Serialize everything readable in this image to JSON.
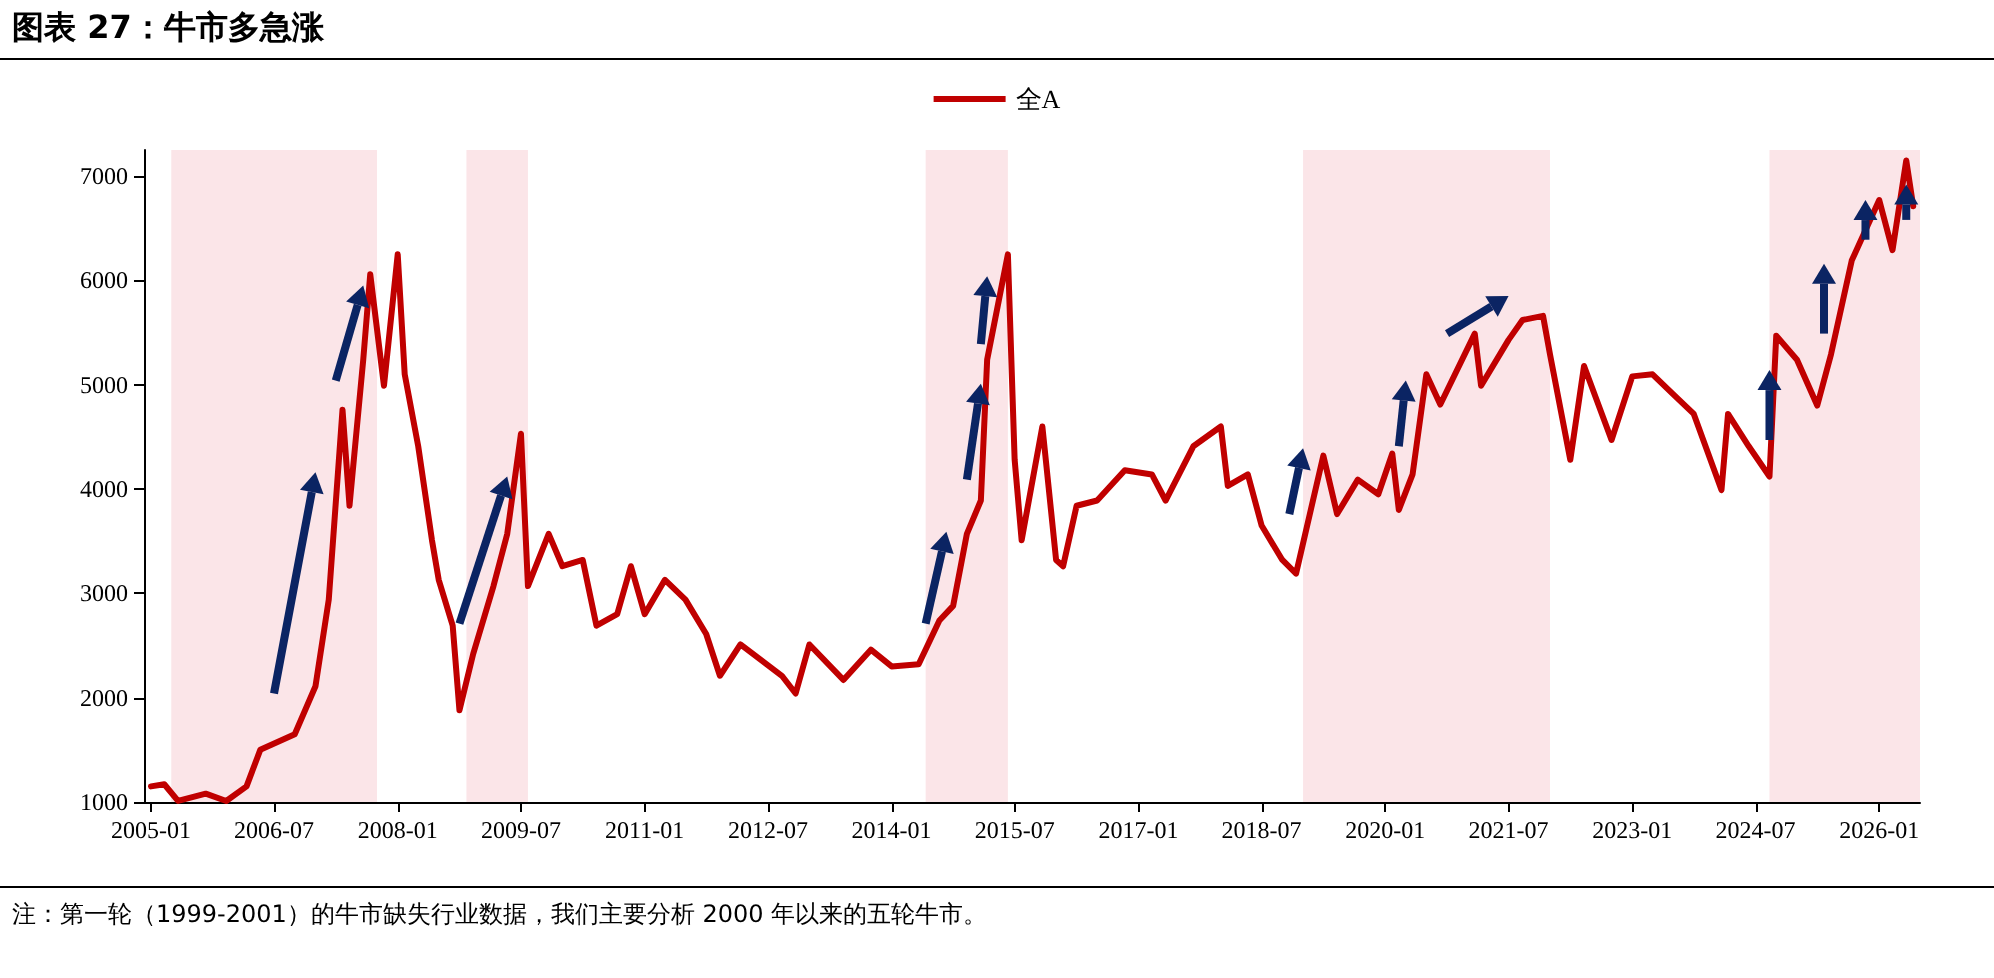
{
  "chart_data": {
    "type": "line",
    "title": "图表 27：牛市多急涨",
    "annotations": [
      "注：第一轮（1999-2001）的牛市缺失行业数据，我们主要分析 2000 年以来的五轮牛市。"
    ],
    "x": [
      "2005-01",
      "2005-03",
      "2005-05",
      "2005-09",
      "2005-12",
      "2006-03",
      "2006-05",
      "2006-10",
      "2007-01",
      "2007-03",
      "2007-05",
      "2007-06",
      "2007-08",
      "2007-09",
      "2007-11",
      "2008-01",
      "2008-02",
      "2008-04",
      "2008-06",
      "2008-07",
      "2008-09",
      "2008-10",
      "2008-12",
      "2009-03",
      "2009-05",
      "2009-07",
      "2009-08",
      "2009-11",
      "2010-01",
      "2010-04",
      "2010-06",
      "2010-09",
      "2010-11",
      "2011-01",
      "2011-04",
      "2011-07",
      "2011-10",
      "2011-12",
      "2012-03",
      "2012-09",
      "2012-11",
      "2013-01",
      "2013-06",
      "2013-10",
      "2014-01",
      "2014-05",
      "2014-08",
      "2014-10",
      "2014-12",
      "2015-02",
      "2015-03",
      "2015-06",
      "2015-07",
      "2015-08",
      "2015-11",
      "2016-01",
      "2016-02",
      "2016-04",
      "2016-07",
      "2016-11",
      "2017-03",
      "2017-05",
      "2017-09",
      "2018-01",
      "2018-02",
      "2018-05",
      "2018-07",
      "2018-10",
      "2018-12",
      "2019-04",
      "2019-06",
      "2019-09",
      "2019-12",
      "2020-02",
      "2020-03",
      "2020-05",
      "2020-07",
      "2020-09",
      "2021-02",
      "2021-03",
      "2021-07",
      "2021-09",
      "2021-12",
      "2022-01",
      "2022-04",
      "2022-06",
      "2022-10",
      "2023-01",
      "2023-04",
      "2023-07",
      "2023-10",
      "2024-02",
      "2024-03",
      "2024-06",
      "2024-09",
      "2024-10",
      "2025-01",
      "2025-04",
      "2025-06",
      "2025-09",
      "2026-01",
      "2026-03",
      "2026-05",
      "2026-06"
    ],
    "series": [
      {
        "name": "全A",
        "color": "#c00000",
        "values": [
          1150,
          1170,
          1010,
          1080,
          1010,
          1150,
          1500,
          1650,
          2110,
          2940,
          4760,
          3840,
          5240,
          6060,
          4990,
          6250,
          5100,
          4410,
          3510,
          3130,
          2690,
          1880,
          2420,
          3070,
          3570,
          4530,
          3070,
          3570,
          3260,
          3320,
          2690,
          2800,
          3260,
          2800,
          3130,
          2940,
          2610,
          2210,
          2510,
          2210,
          2040,
          2510,
          2170,
          2460,
          2300,
          2320,
          2740,
          2880,
          3570,
          3890,
          5240,
          6250,
          4280,
          3510,
          4600,
          3320,
          3260,
          3840,
          3890,
          4180,
          4140,
          3890,
          4410,
          4600,
          4030,
          4140,
          3650,
          3320,
          3190,
          4320,
          3760,
          4090,
          3950,
          4340,
          3800,
          4140,
          5100,
          4810,
          5490,
          4990,
          5430,
          5620,
          5660,
          5290,
          4280,
          5180,
          4470,
          5080,
          5100,
          4910,
          4720,
          3990,
          4720,
          4410,
          4120,
          5470,
          5240,
          4800,
          5290,
          6190,
          6770,
          6290,
          7150,
          6710
        ]
      }
    ],
    "xlim": [
      "2004-12",
      "2026-07"
    ],
    "xticks": [
      "2005-01",
      "2006-07",
      "2008-01",
      "2009-07",
      "2011-01",
      "2012-07",
      "2014-01",
      "2015-07",
      "2017-01",
      "2018-07",
      "2020-01",
      "2021-07",
      "2023-01",
      "2024-07",
      "2026-01"
    ],
    "ylim": [
      1000,
      7250
    ],
    "yticks": [
      1000,
      2000,
      3000,
      4000,
      5000,
      6000,
      7000
    ],
    "bands": [
      {
        "axis": "x",
        "from": "2005-04",
        "to": "2007-10",
        "color": "#fbe5e8"
      },
      {
        "axis": "x",
        "from": "2008-11",
        "to": "2009-08",
        "color": "#fbe5e8"
      },
      {
        "axis": "x",
        "from": "2014-06",
        "to": "2015-06",
        "color": "#fbe5e8"
      },
      {
        "axis": "x",
        "from": "2019-01",
        "to": "2022-01",
        "color": "#fbe5e8"
      },
      {
        "axis": "x",
        "from": "2024-09",
        "to": "2026-07",
        "color": "#fbe5e8"
      }
    ],
    "legend": "top",
    "grid": false,
    "marker": "none",
    "line_style": "solid"
  }
}
